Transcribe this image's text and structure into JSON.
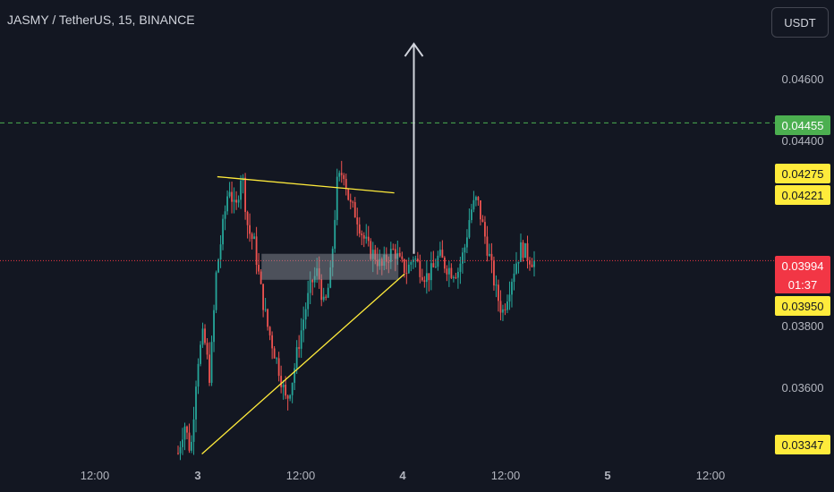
{
  "header": {
    "title": "JASMY / TetherUS, 15, BINANCE",
    "currency": "USDT"
  },
  "colors": {
    "background": "#131722",
    "up": "#26a69a",
    "down": "#ef5350",
    "trendline": "#ffeb3b",
    "target_line": "#4caf50",
    "current_line": "#f23645",
    "axis_text": "#b2b5be",
    "range_box": "#9598a1"
  },
  "chart_data": {
    "type": "candlestick",
    "symbol": "JASMY / TetherUS",
    "interval": "15",
    "exchange": "BINANCE",
    "x_ticks": [
      "12:00",
      "3",
      "12:00",
      "4",
      "12:00",
      "5",
      "12:00"
    ],
    "y_ticks": [
      "0.04600",
      "0.04400",
      "0.03800",
      "0.03600"
    ],
    "price_labels": [
      {
        "value": "0.04455",
        "kind": "target"
      },
      {
        "value": "0.04275",
        "kind": "level"
      },
      {
        "value": "0.04221",
        "kind": "level"
      },
      {
        "value": "0.03994",
        "kind": "current"
      },
      {
        "value": "01:37",
        "kind": "countdown"
      },
      {
        "value": "0.03950",
        "kind": "level"
      },
      {
        "value": "0.03347",
        "kind": "level"
      }
    ],
    "trendlines": [
      {
        "name": "upper",
        "from": {
          "day_offset": 1.19,
          "price": 0.04275
        },
        "to": {
          "day_offset": 2.91,
          "price": 0.04221
        }
      },
      {
        "name": "lower",
        "from": {
          "day_offset": 1.04,
          "price": 0.03347
        },
        "to": {
          "day_offset": 3.01,
          "price": 0.0395
        }
      }
    ],
    "range_box": {
      "price_top": 0.04017,
      "price_bottom": 0.0393,
      "from_day_offset": 1.62,
      "to_day_offset": 2.95
    },
    "arrow": {
      "day_offset": 3.1,
      "price_from": 0.04017,
      "price_to": 0.0472
    },
    "horizontal_lines": [
      {
        "price": 0.04455,
        "style": "dashed"
      },
      {
        "price": 0.03994,
        "style": "dotted"
      }
    ],
    "candles_path": [
      0.0335,
      0.0345,
      0.0335,
      0.0365,
      0.0375,
      0.036,
      0.0395,
      0.041,
      0.0425,
      0.0415,
      0.043,
      0.041,
      0.0405,
      0.039,
      0.0378,
      0.037,
      0.0362,
      0.0352,
      0.036,
      0.0372,
      0.0383,
      0.0392,
      0.0396,
      0.0383,
      0.0395,
      0.0425,
      0.043,
      0.0418,
      0.0415,
      0.0408,
      0.0403,
      0.0401,
      0.0397,
      0.0401,
      0.0403,
      0.0398,
      0.0396,
      0.0401,
      0.0397,
      0.0394,
      0.0396,
      0.0401,
      0.0398,
      0.0396,
      0.0396,
      0.0403,
      0.0416,
      0.042,
      0.041,
      0.04,
      0.0389,
      0.0382,
      0.039,
      0.0398,
      0.0404,
      0.0401,
      0.0399
    ]
  }
}
